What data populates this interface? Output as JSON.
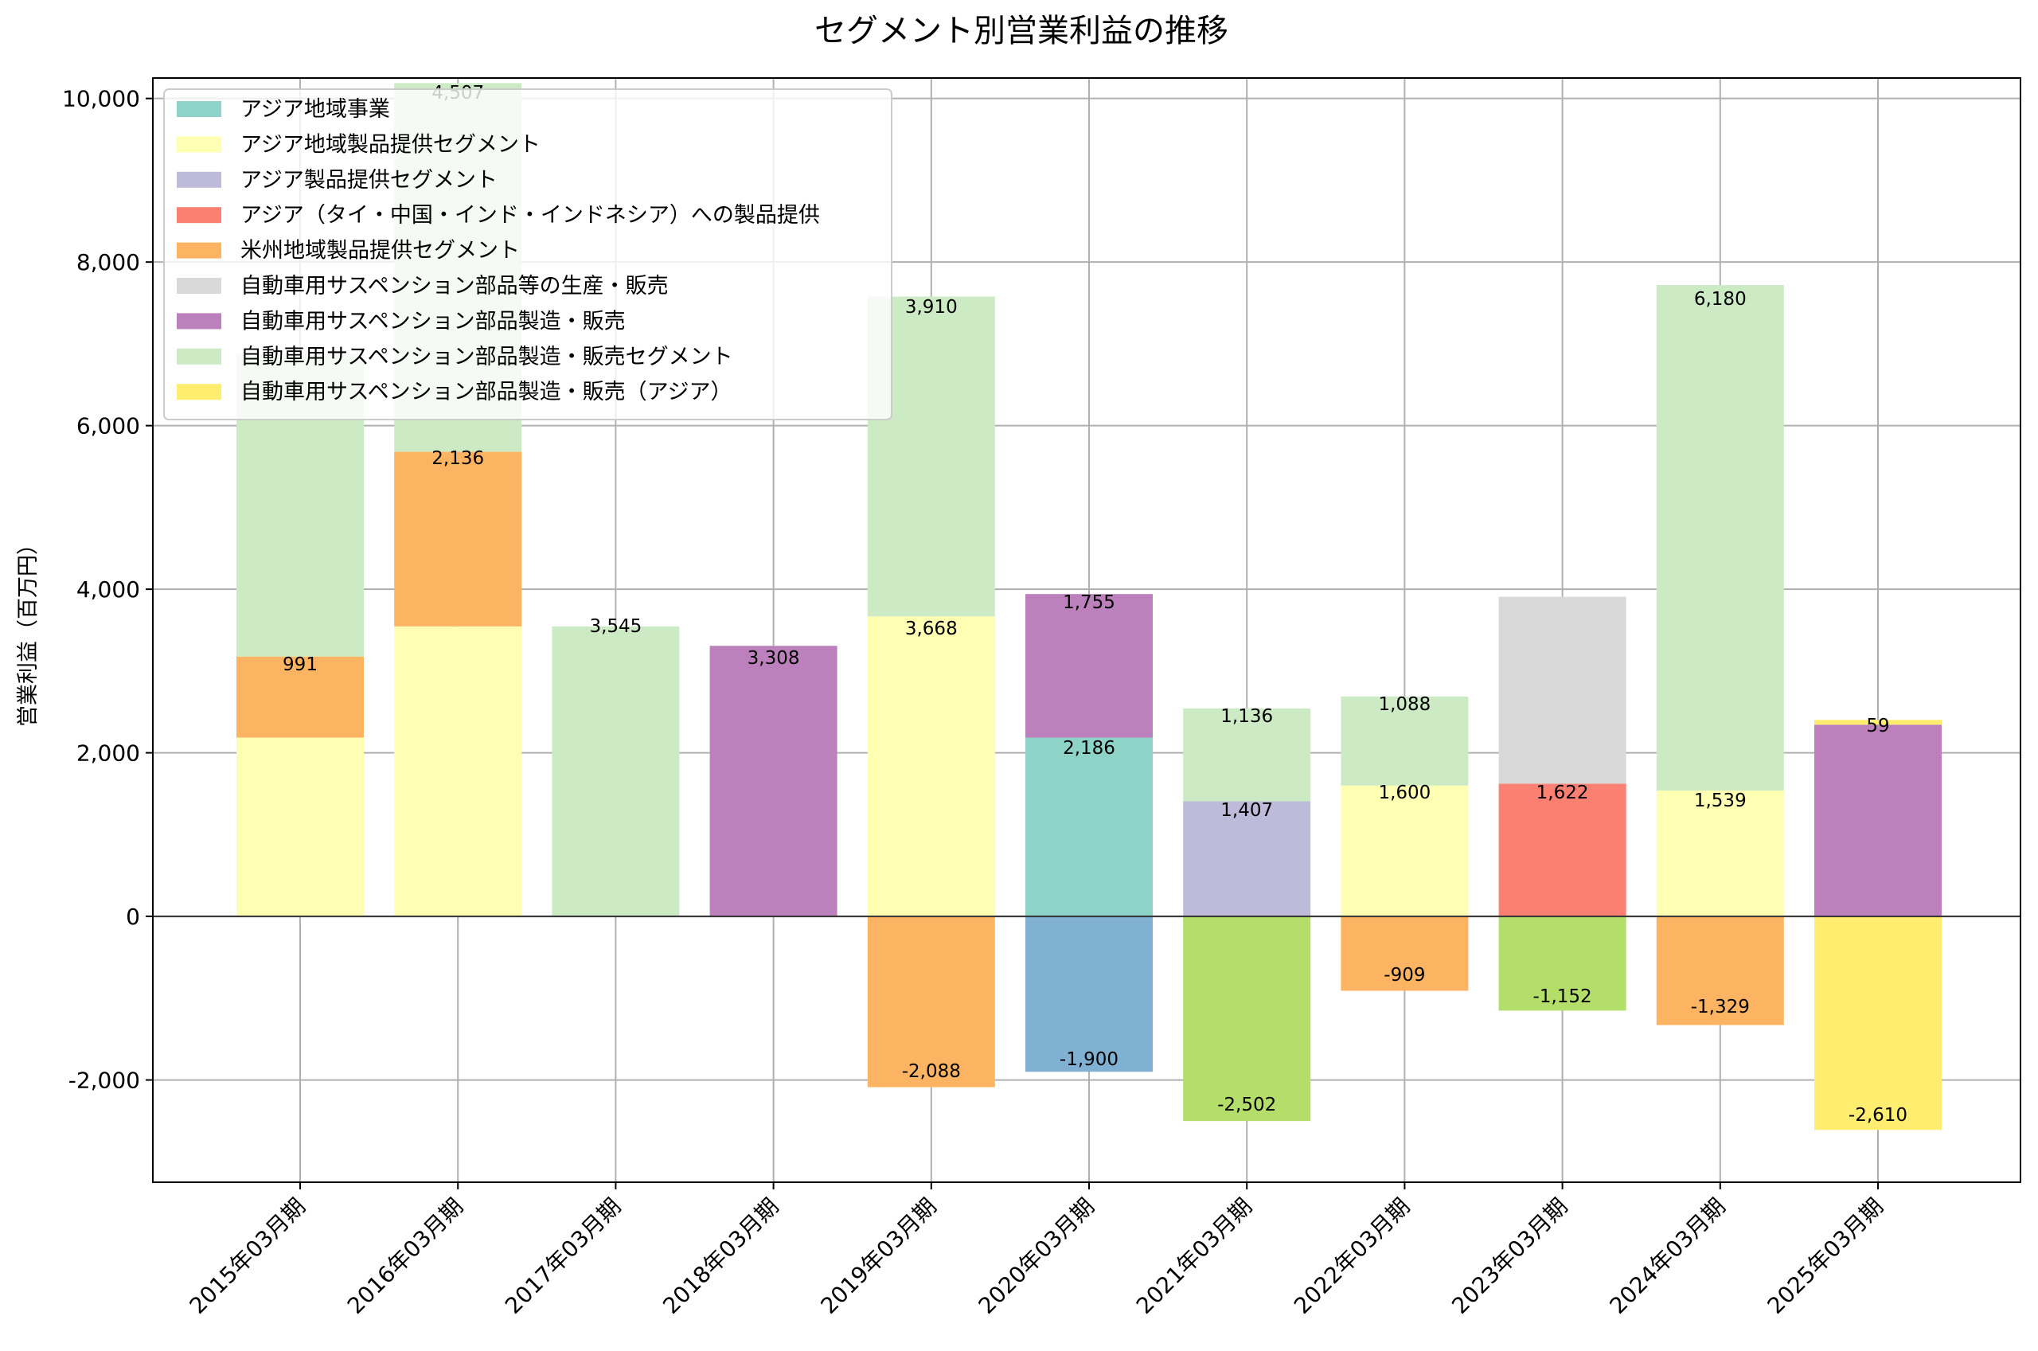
{
  "chart_data": {
    "type": "bar",
    "stacked": true,
    "title": "セグメント別営業利益の推移",
    "xlabel": "",
    "ylabel": "営業利益（百万円）",
    "ylim": [
      -3250,
      10250
    ],
    "yticks": [
      -2000,
      0,
      2000,
      4000,
      6000,
      8000,
      10000
    ],
    "ytick_labels": [
      "-2,000",
      "0",
      "2,000",
      "4,000",
      "6,000",
      "8,000",
      "10,000"
    ],
    "grid": true,
    "legend_position": "top-left",
    "categories": [
      "2015年03月期",
      "2016年03月期",
      "2017年03月期",
      "2018年03月期",
      "2019年03月期",
      "2020年03月期",
      "2021年03月期",
      "2022年03月期",
      "2023年03月期",
      "2024年03月期",
      "2025年03月期"
    ],
    "series": [
      {
        "name": "アジア地域事業",
        "color": "#8dd3c7",
        "values": [
          null,
          null,
          null,
          null,
          null,
          2186,
          null,
          null,
          null,
          null,
          null
        ]
      },
      {
        "name": "アジア地域製品提供セグメント",
        "color": "#ffffb3",
        "values": [
          2186,
          3545,
          null,
          null,
          3668,
          null,
          null,
          1600,
          null,
          1539,
          null
        ]
      },
      {
        "name": "アジア製品提供セグメント",
        "color": "#bebada",
        "values": [
          null,
          null,
          null,
          null,
          null,
          null,
          1407,
          null,
          null,
          null,
          null
        ]
      },
      {
        "name": "アジア（タイ・中国・インド・インドネシア）への製品提供",
        "color": "#fb8072",
        "values": [
          null,
          null,
          null,
          null,
          null,
          null,
          null,
          null,
          1622,
          null,
          null
        ]
      },
      {
        "name": "",
        "color": "#80b1d3",
        "values": [
          null,
          null,
          null,
          null,
          null,
          -1900,
          null,
          null,
          null,
          null,
          null
        ]
      },
      {
        "name": "米州地域製品提供セグメント",
        "color": "#fdb462",
        "values": [
          991,
          2136,
          null,
          null,
          -2088,
          null,
          null,
          -909,
          null,
          -1329,
          null
        ]
      },
      {
        "name": "",
        "color": "#b3de69",
        "values": [
          null,
          null,
          null,
          null,
          null,
          null,
          -2502,
          null,
          -1152,
          null,
          null
        ]
      },
      {
        "name": "自動車用サスペンション部品等の生産・販売",
        "color": "#d9d9d9",
        "values": [
          null,
          null,
          null,
          null,
          null,
          null,
          null,
          null,
          2286,
          null,
          null
        ]
      },
      {
        "name": "自動車用サスペンション部品製造・販売",
        "color": "#bc80bd",
        "values": [
          null,
          null,
          null,
          3308,
          null,
          1755,
          null,
          null,
          null,
          null,
          2344
        ]
      },
      {
        "name": "自動車用サスペンション部品製造・販売セグメント",
        "color": "#ccebc5",
        "values": [
          3700,
          4507,
          3545,
          null,
          3910,
          null,
          1136,
          1088,
          null,
          6180,
          null
        ]
      },
      {
        "name": "自動車用サスペンション部品製造・販売（アジア）",
        "color": "#ffed6f",
        "values": [
          null,
          null,
          null,
          null,
          null,
          null,
          null,
          null,
          null,
          null,
          -2610
        ]
      },
      {
        "name": "",
        "color": "#ffed6f",
        "values": [
          null,
          null,
          null,
          null,
          null,
          null,
          null,
          null,
          null,
          null,
          59
        ]
      }
    ],
    "value_labels": [
      {
        "cat": 0,
        "text": "991"
      },
      {
        "cat": 1,
        "text": "4,507"
      },
      {
        "cat": 1,
        "text": "2,136"
      },
      {
        "cat": 2,
        "text": "3,545"
      },
      {
        "cat": 3,
        "text": "3,308"
      },
      {
        "cat": 4,
        "text": "3,910"
      },
      {
        "cat": 4,
        "text": "3,668"
      },
      {
        "cat": 4,
        "text": "-2,088"
      },
      {
        "cat": 5,
        "text": "1,755"
      },
      {
        "cat": 5,
        "text": "2,186"
      },
      {
        "cat": 5,
        "text": "-1,900"
      },
      {
        "cat": 6,
        "text": "1,136"
      },
      {
        "cat": 6,
        "text": "1,407"
      },
      {
        "cat": 6,
        "text": "-2,502"
      },
      {
        "cat": 7,
        "text": "1,088"
      },
      {
        "cat": 7,
        "text": "1,600"
      },
      {
        "cat": 7,
        "text": "-909"
      },
      {
        "cat": 8,
        "text": "1,622"
      },
      {
        "cat": 8,
        "text": "-1,152"
      },
      {
        "cat": 9,
        "text": "6,180"
      },
      {
        "cat": 9,
        "text": "1,539"
      },
      {
        "cat": 9,
        "text": "-1,329"
      },
      {
        "cat": 10,
        "text": "59"
      },
      {
        "cat": 10,
        "text": "-2,610"
      }
    ],
    "legend": [
      {
        "label": "アジア地域事業",
        "color": "#8dd3c7"
      },
      {
        "label": "アジア地域製品提供セグメント",
        "color": "#ffffb3"
      },
      {
        "label": "アジア製品提供セグメント",
        "color": "#bebada"
      },
      {
        "label": "アジア（タイ・中国・インド・インドネシア）への製品提供",
        "color": "#fb8072"
      },
      {
        "label": "米州地域製品提供セグメント",
        "color": "#fdb462"
      },
      {
        "label": "自動車用サスペンション部品等の生産・販売",
        "color": "#d9d9d9"
      },
      {
        "label": "自動車用サスペンション部品製造・販売",
        "color": "#bc80bd"
      },
      {
        "label": "自動車用サスペンション部品製造・販売セグメント",
        "color": "#ccebc5"
      },
      {
        "label": "自動車用サスペンション部品製造・販売（アジア）",
        "color": "#ffed6f"
      }
    ]
  }
}
